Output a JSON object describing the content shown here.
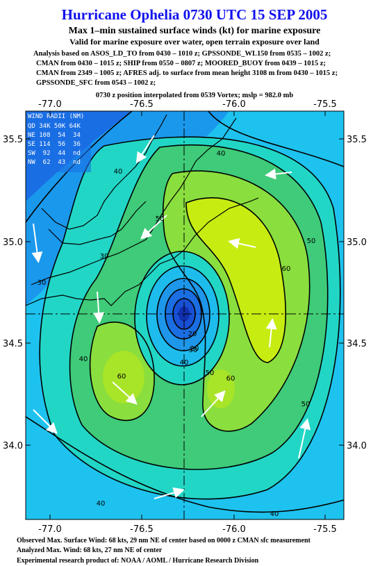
{
  "header": {
    "title": "Hurricane Ophelia 0730 UTC 15 SEP 2005",
    "subtitle": "Max 1–min sustained surface winds (kt) for marine exposure",
    "validity": "Valid for marine exposure over water, open terrain exposure over land",
    "analysis": [
      "Analysis based on  ASOS_LD_TO from 0430 – 1010 z;  GPSSONDE_WL150 from 0535 – 1002 z;",
      "CMAN from 0430 – 1015 z;  SHIP from 0550 – 0807 z;  MOORED_BUOY from 0439 – 1015 z;",
      "CMAN from 2349 – 1005 z;  AFRES adj. to surface from mean height 3108 m from 0430 – 1015 z;",
      "GPSSONDE_SFC from 0543 – 1002 z;"
    ],
    "position": "0730 z position interpolated from 0539 Vortex; mslp = 982.0 mb"
  },
  "map": {
    "lon_labels": [
      "-77.0",
      "-76.5",
      "-76.0",
      "-75.5"
    ],
    "lat_labels": [
      "35.5",
      "35.0",
      "34.5",
      "34.0"
    ],
    "wind_radii": {
      "title": "WIND RADII (NM)",
      "rows": [
        "QD 34K 50K 64K",
        "NE 108  54  34",
        "SE 114  56  36",
        "SW  92  44  nd",
        "NW  62  43  nd"
      ]
    },
    "contour_labels": [
      "40",
      "40",
      "40",
      "50",
      "50",
      "30",
      "30",
      "20",
      "40",
      "50",
      "60",
      "60",
      "60",
      "50",
      "40",
      "40",
      "20",
      "30"
    ]
  },
  "footer": [
    "Observed Max. Surface Wind: 68 kts, 29 nm NE of center based on 0000 z CMAN sfc measurement",
    "Analyzed Max. Wind: 68 kts, 27 nm NE of center",
    "Experimental research product of: NOAA / AOML / Hurricane Research Division"
  ]
}
